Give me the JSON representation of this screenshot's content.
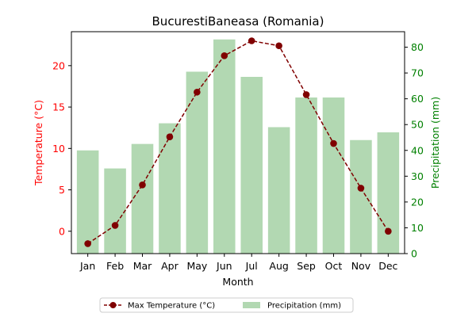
{
  "chart_data": {
    "type": "bar",
    "title": "BucurestiBaneasa (Romania)",
    "xlabel": "Month",
    "categories": [
      "Jan",
      "Feb",
      "Mar",
      "Apr",
      "May",
      "Jun",
      "Jul",
      "Aug",
      "Sep",
      "Oct",
      "Nov",
      "Dec"
    ],
    "y_left": {
      "label": "Temperature (°C)",
      "color": "#ff0000",
      "ylim": [
        -2.7,
        24.1
      ],
      "ticks": [
        0,
        5,
        10,
        15,
        20
      ]
    },
    "y_right": {
      "label": "Precipitation (mm)",
      "color": "#008000",
      "ylim": [
        0,
        86
      ],
      "ticks": [
        0,
        10,
        20,
        30,
        40,
        50,
        60,
        70,
        80
      ]
    },
    "series": [
      {
        "name": "Max Temperature (°C)",
        "kind": "line",
        "axis": "left",
        "color": "#800000",
        "line_style": "dashed",
        "marker": "circle",
        "values": [
          -1.5,
          0.7,
          5.6,
          11.4,
          16.8,
          21.2,
          23.0,
          22.4,
          16.5,
          10.6,
          5.2,
          0.0
        ]
      },
      {
        "name": "Precipitation (mm)",
        "kind": "bar",
        "axis": "right",
        "color": "#b2d8b2",
        "values": [
          40,
          33,
          42.5,
          50.5,
          70.5,
          83,
          68.5,
          49,
          60.5,
          60.5,
          44,
          47
        ]
      }
    ],
    "legend": {
      "placement": "bottom-center"
    },
    "grid": false
  }
}
